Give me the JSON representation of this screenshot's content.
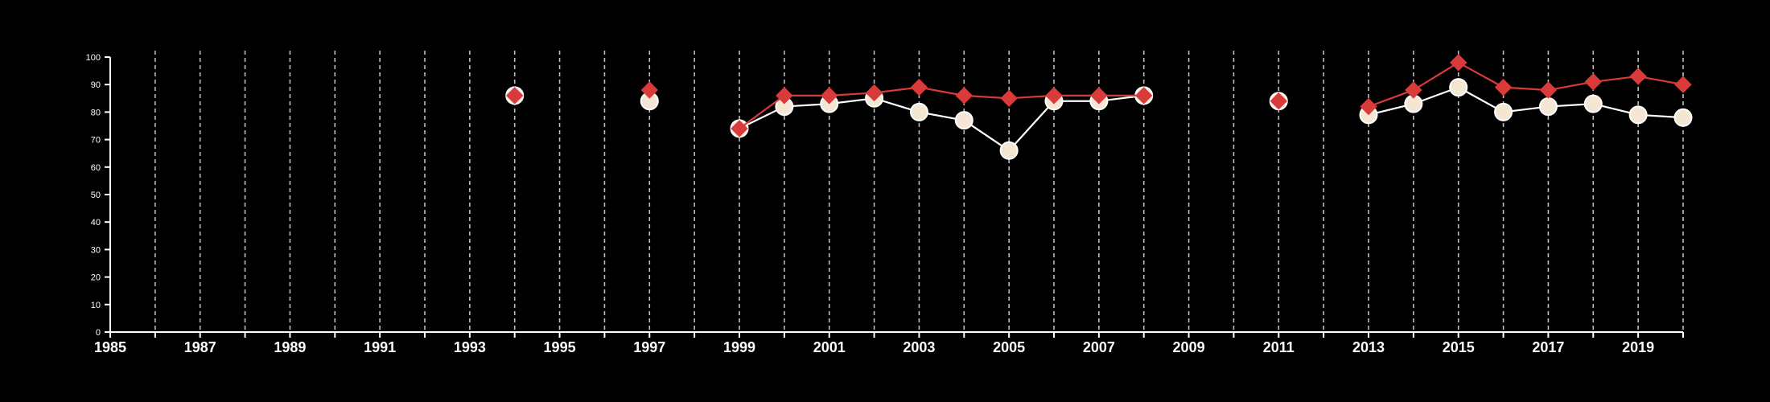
{
  "chart_data": {
    "type": "line",
    "title": "",
    "xlabel": "",
    "ylabel": "",
    "xlim": [
      1985,
      2020
    ],
    "ylim": [
      0,
      100
    ],
    "y_ticks": [
      "0",
      "10",
      "20",
      "30",
      "40",
      "50",
      "60",
      "70",
      "80",
      "90",
      "100"
    ],
    "x_ticks": [
      "1985",
      "1987",
      "1989",
      "1991",
      "1993",
      "1995",
      "1997",
      "1999",
      "2001",
      "2003",
      "2005",
      "2007",
      "2009",
      "2011",
      "2013",
      "2015",
      "2017",
      "2019"
    ],
    "grid": "vertical dashed at each year",
    "legend": "none",
    "series": [
      {
        "marker": "circle",
        "color": "#ffffff",
        "fill": "#f5e6d3",
        "points": [
          [
            1994,
            86
          ],
          [
            1997,
            84
          ],
          [
            1999,
            74
          ],
          [
            2000,
            82
          ],
          [
            2001,
            83
          ],
          [
            2002,
            85
          ],
          [
            2003,
            80
          ],
          [
            2004,
            77
          ],
          [
            2005,
            66
          ],
          [
            2006,
            84
          ],
          [
            2007,
            84
          ],
          [
            2008,
            86
          ],
          [
            2011,
            84
          ],
          [
            2013,
            79
          ],
          [
            2014,
            83
          ],
          [
            2015,
            89
          ],
          [
            2016,
            80
          ],
          [
            2017,
            82
          ],
          [
            2018,
            83
          ],
          [
            2019,
            79
          ],
          [
            2020,
            78
          ]
        ]
      },
      {
        "marker": "diamond",
        "color": "#d93a3a",
        "fill": "#d93a3a",
        "points": [
          [
            1994,
            86
          ],
          [
            1997,
            88
          ],
          [
            1999,
            74
          ],
          [
            2000,
            86
          ],
          [
            2001,
            86
          ],
          [
            2002,
            87
          ],
          [
            2003,
            89
          ],
          [
            2004,
            86
          ],
          [
            2005,
            85
          ],
          [
            2006,
            86
          ],
          [
            2007,
            86
          ],
          [
            2008,
            86
          ],
          [
            2011,
            84
          ],
          [
            2013,
            82
          ],
          [
            2014,
            88
          ],
          [
            2015,
            98
          ],
          [
            2016,
            89
          ],
          [
            2017,
            88
          ],
          [
            2018,
            91
          ],
          [
            2019,
            93
          ],
          [
            2020,
            90
          ]
        ]
      }
    ]
  }
}
